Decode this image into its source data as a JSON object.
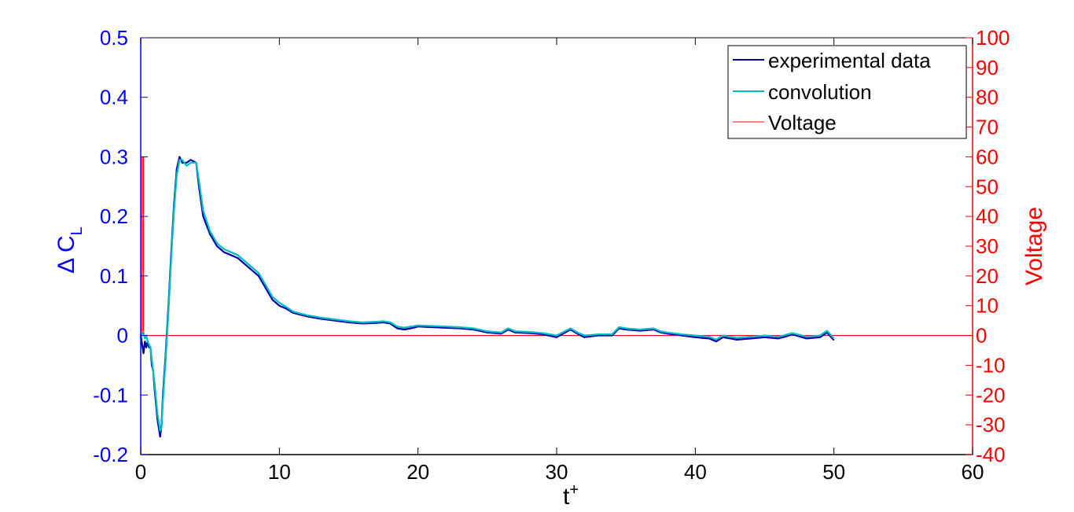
{
  "chart_data": {
    "type": "line",
    "xlabel": "t",
    "xlabel_sup": "+",
    "ylabel_left": "Δ C",
    "ylabel_left_sub": "L",
    "ylabel_right": "Voltage",
    "xlim": [
      0,
      60
    ],
    "ylim_left": [
      -0.2,
      0.5
    ],
    "ylim_right": [
      -40,
      100
    ],
    "x_ticks": [
      "0",
      "10",
      "20",
      "30",
      "40",
      "50",
      "60"
    ],
    "y_left_ticks": [
      "-0.2",
      "-0.1",
      "0",
      "0.1",
      "0.2",
      "0.3",
      "0.4",
      "0.5"
    ],
    "y_right_ticks": [
      "-40",
      "-30",
      "-20",
      "-10",
      "0",
      "10",
      "20",
      "30",
      "40",
      "50",
      "60",
      "70",
      "80",
      "90",
      "100"
    ],
    "grid": false,
    "legend_position": "top-right",
    "colors": {
      "left_axis": "#0000ff",
      "right_axis": "#ff0000",
      "experimental": "#0000aa",
      "convolution": "#00bfbf",
      "voltage": "#ff0000"
    },
    "series": [
      {
        "name": "experimental data",
        "axis": "left",
        "x": [
          0,
          0.2,
          0.3,
          0.4,
          0.5,
          0.6,
          0.7,
          0.8,
          0.9,
          1.0,
          1.2,
          1.4,
          1.5,
          1.6,
          1.8,
          2.0,
          2.2,
          2.4,
          2.6,
          2.8,
          3.0,
          3.3,
          3.6,
          4.0,
          4.2,
          4.5,
          5.0,
          5.5,
          6.0,
          6.5,
          7.0,
          7.5,
          8.0,
          8.5,
          9.0,
          9.5,
          10.0,
          10.5,
          11.0,
          11.5,
          12.0,
          12.5,
          13.0,
          14.0,
          15.0,
          16.0,
          17.0,
          17.5,
          18.0,
          18.5,
          19.0,
          19.5,
          20.0,
          21.0,
          22.0,
          23.0,
          24.0,
          25.0,
          26.0,
          26.5,
          27.0,
          28.0,
          29.0,
          30.0,
          31.0,
          31.5,
          32.0,
          33.0,
          34.0,
          34.5,
          35.0,
          36.0,
          37.0,
          37.5,
          38.0,
          39.0,
          40.0,
          41.0,
          41.5,
          42.0,
          43.0,
          44.0,
          45.0,
          46.0,
          46.5,
          47.0,
          48.0,
          49.0,
          49.5,
          50.0
        ],
        "y": [
          0,
          -0.03,
          -0.01,
          -0.02,
          -0.01,
          -0.02,
          -0.02,
          -0.05,
          -0.06,
          -0.09,
          -0.14,
          -0.17,
          -0.15,
          -0.1,
          -0.03,
          0.05,
          0.14,
          0.22,
          0.28,
          0.3,
          0.29,
          0.29,
          0.295,
          0.29,
          0.25,
          0.2,
          0.17,
          0.15,
          0.14,
          0.135,
          0.13,
          0.12,
          0.11,
          0.1,
          0.08,
          0.06,
          0.05,
          0.045,
          0.038,
          0.035,
          0.032,
          0.03,
          0.028,
          0.025,
          0.022,
          0.02,
          0.021,
          0.022,
          0.02,
          0.012,
          0.01,
          0.012,
          0.015,
          0.014,
          0.013,
          0.012,
          0.01,
          0.005,
          0.003,
          0.01,
          0.005,
          0.004,
          0.002,
          -0.003,
          0.01,
          0.003,
          -0.003,
          0.0,
          0.0,
          0.012,
          0.01,
          0.008,
          0.01,
          0.005,
          0.003,
          0.0,
          -0.003,
          -0.005,
          -0.01,
          -0.003,
          -0.007,
          -0.005,
          -0.003,
          -0.005,
          -0.002,
          0.002,
          -0.005,
          -0.003,
          0.005,
          -0.008
        ]
      },
      {
        "name": "convolution",
        "axis": "left",
        "x": [
          0,
          0.2,
          0.3,
          0.4,
          0.5,
          0.6,
          0.7,
          0.8,
          0.9,
          1.0,
          1.2,
          1.4,
          1.5,
          1.6,
          1.8,
          2.0,
          2.2,
          2.4,
          2.6,
          2.8,
          3.0,
          3.3,
          3.6,
          4.0,
          4.2,
          4.5,
          5.0,
          5.5,
          6.0,
          6.5,
          7.0,
          7.5,
          8.0,
          8.5,
          9.0,
          9.5,
          10.0,
          10.5,
          11.0,
          11.5,
          12.0,
          12.5,
          13.0,
          14.0,
          15.0,
          16.0,
          17.0,
          17.5,
          18.0,
          18.5,
          19.0,
          19.5,
          20.0,
          21.0,
          22.0,
          23.0,
          24.0,
          25.0,
          26.0,
          26.5,
          27.0,
          28.0,
          29.0,
          30.0,
          31.0,
          31.5,
          32.0,
          33.0,
          34.0,
          34.5,
          35.0,
          36.0,
          37.0,
          37.5,
          38.0,
          39.0,
          40.0,
          41.0,
          41.5,
          42.0,
          43.0,
          44.0,
          45.0,
          46.0,
          46.5,
          47.0,
          48.0,
          49.0,
          49.5,
          50.0
        ],
        "y": [
          0,
          0.005,
          -0.005,
          0.0,
          -0.01,
          -0.015,
          -0.02,
          -0.04,
          -0.06,
          -0.08,
          -0.13,
          -0.16,
          -0.155,
          -0.11,
          -0.04,
          0.04,
          0.13,
          0.21,
          0.27,
          0.295,
          0.295,
          0.285,
          0.29,
          0.29,
          0.26,
          0.21,
          0.175,
          0.155,
          0.145,
          0.14,
          0.135,
          0.125,
          0.115,
          0.105,
          0.085,
          0.065,
          0.055,
          0.048,
          0.04,
          0.037,
          0.034,
          0.032,
          0.03,
          0.027,
          0.024,
          0.022,
          0.023,
          0.024,
          0.022,
          0.015,
          0.013,
          0.015,
          0.017,
          0.016,
          0.015,
          0.014,
          0.012,
          0.007,
          0.005,
          0.012,
          0.007,
          0.006,
          0.004,
          0.0,
          0.012,
          0.005,
          0.0,
          0.002,
          0.002,
          0.014,
          0.012,
          0.01,
          0.012,
          0.007,
          0.005,
          0.002,
          0.0,
          -0.002,
          -0.007,
          0.0,
          -0.004,
          -0.002,
          0.0,
          -0.002,
          0.001,
          0.004,
          -0.002,
          0.0,
          0.008,
          -0.005
        ]
      },
      {
        "name": "Voltage",
        "axis": "right",
        "x": [
          0,
          0.1,
          0.1,
          0.2,
          0.2,
          60
        ],
        "y": [
          0,
          0,
          60,
          60,
          0,
          0
        ]
      }
    ]
  }
}
